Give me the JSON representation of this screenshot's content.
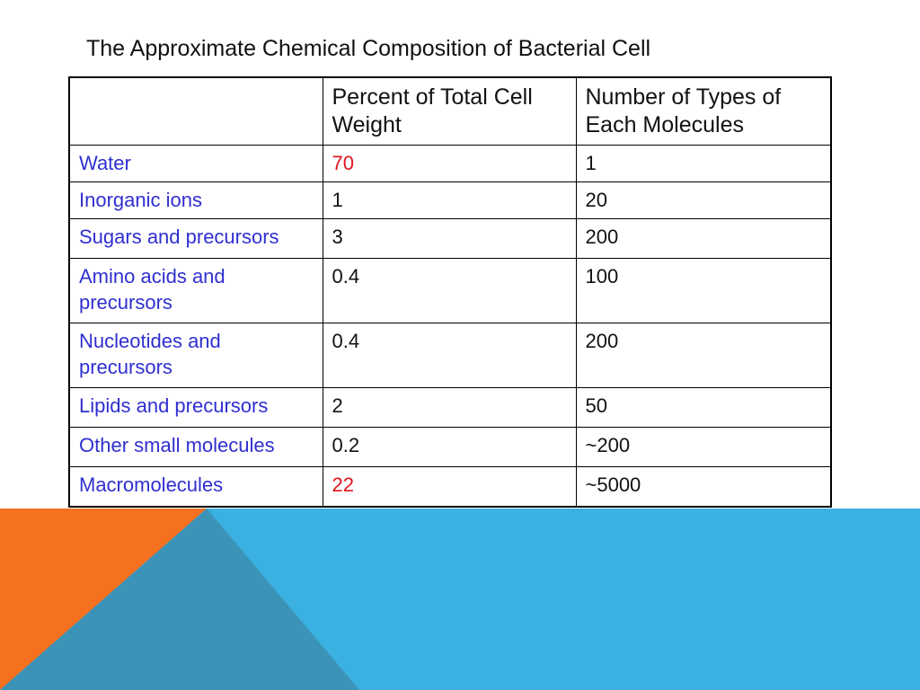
{
  "slide": {
    "title": "The Approximate Chemical Composition of Bacterial Cell"
  },
  "table": {
    "headers": [
      "",
      "Percent of Total Cell Weight",
      "Number of Types of Each Molecules"
    ],
    "rows": [
      {
        "name": "Water",
        "percent": "70",
        "types": "1"
      },
      {
        "name": "Inorganic ions",
        "percent": "1",
        "types": "20"
      },
      {
        "name": "Sugars and precursors",
        "percent": "3",
        "types": "200"
      },
      {
        "name": "Amino acids and precursors",
        "percent": "0.4",
        "types": "100"
      },
      {
        "name": "Nucleotides and precursors",
        "percent": "0.4",
        "types": "200"
      },
      {
        "name": "Lipids and precursors",
        "percent": "2",
        "types": "50"
      },
      {
        "name": "Other small molecules",
        "percent": "0.2",
        "types": "~200"
      },
      {
        "name": "Macromolecules",
        "percent": "22",
        "types": "~5000"
      }
    ]
  },
  "colors": {
    "row_label": "#2f2fd0",
    "highlight": "#e0141e",
    "band_blue": "#3ab1e0",
    "band_orange": "#f5711f",
    "band_teal": "#3c93b8"
  }
}
